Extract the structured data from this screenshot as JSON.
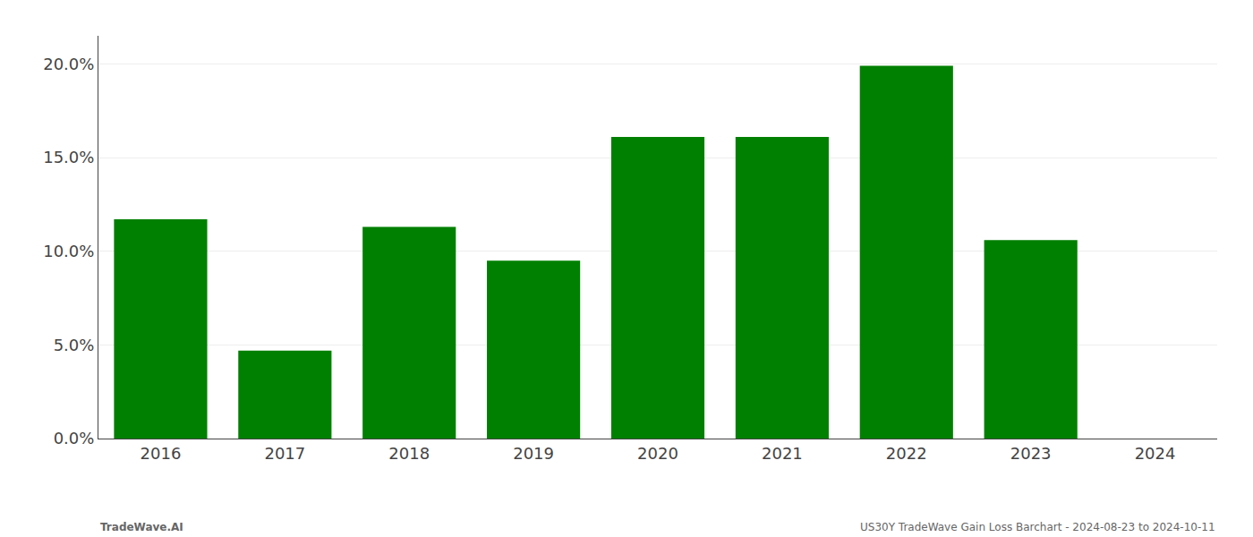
{
  "chart_data": {
    "type": "bar",
    "categories": [
      "2016",
      "2017",
      "2018",
      "2019",
      "2020",
      "2021",
      "2022",
      "2023",
      "2024"
    ],
    "values": [
      0.117,
      0.047,
      0.113,
      0.095,
      0.161,
      0.161,
      0.199,
      0.106,
      0.0
    ],
    "color": "#008000",
    "ylim": [
      0.0,
      0.215
    ],
    "yticks": [
      {
        "value": 0.0,
        "label": "0.0%"
      },
      {
        "value": 0.05,
        "label": "5.0%"
      },
      {
        "value": 0.1,
        "label": "10.0%"
      },
      {
        "value": 0.15,
        "label": "15.0%"
      },
      {
        "value": 0.2,
        "label": "20.0%"
      }
    ],
    "grid": true,
    "annotations": [
      "TradeWave.AI",
      "US30Y TradeWave Gain Loss Barchart - 2024-08-23 to 2024-10-11"
    ]
  }
}
